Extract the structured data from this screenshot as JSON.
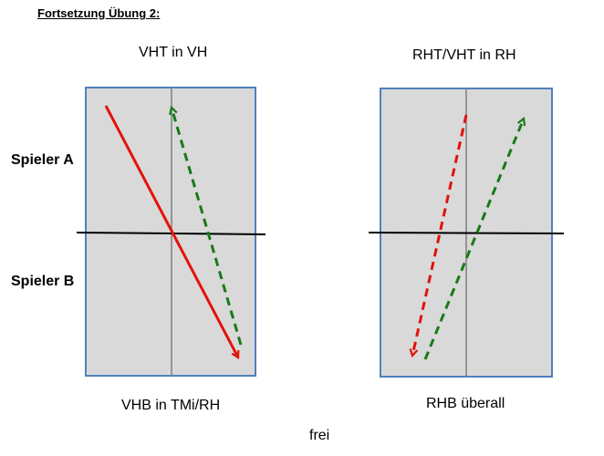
{
  "title": "Fortsetzung Übung 2:",
  "players": {
    "a": "Spieler A",
    "b": "Spieler B"
  },
  "left_panel": {
    "top_label": "VHT in VH",
    "bottom_label": "VHB in TMi/RH"
  },
  "right_panel": {
    "top_label": "RHT/VHT in RH",
    "bottom_label": "RHB überall"
  },
  "footer": "frei",
  "colors": {
    "court_fill": "#d9d9d9",
    "court_border": "#4f81bd",
    "net": "#000000",
    "center_line": "#7f7f7f",
    "red_arrow": "#e3120b",
    "green_arrow": "#177a17"
  }
}
